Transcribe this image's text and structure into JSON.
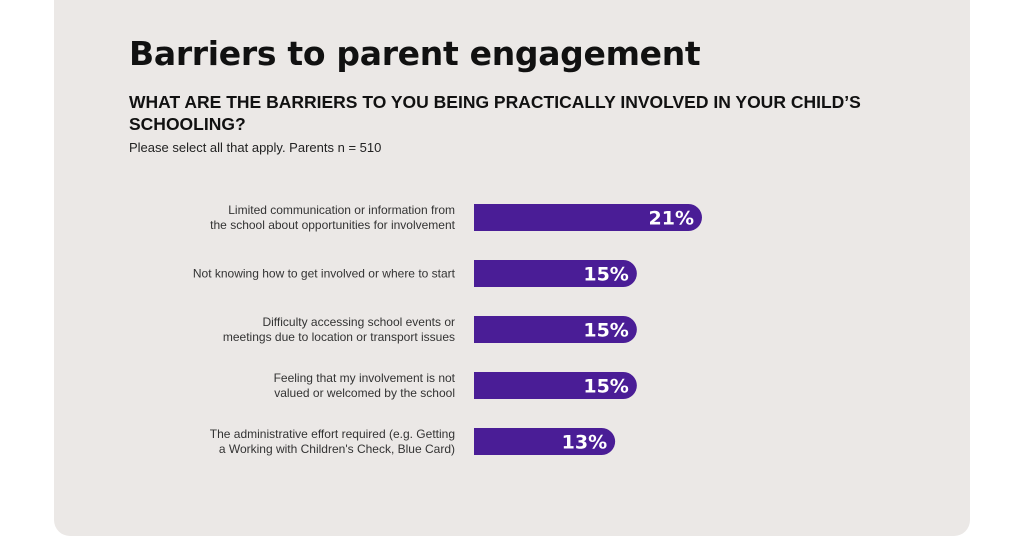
{
  "header": {
    "title": "Barriers to parent engagement",
    "question": "WHAT ARE THE BARRIERS TO YOU BEING PRACTICALLY INVOLVED IN YOUR CHILD’S SCHOOLING?",
    "note": "Please select all that apply. Parents n = 510"
  },
  "colors": {
    "bar": "#4a1d96",
    "background": "#ebe8e6"
  },
  "chart_data": {
    "type": "bar",
    "orientation": "horizontal",
    "categories": [
      [
        "Limited communication or information from",
        "the school about opportunities for involvement"
      ],
      [
        "Not knowing how to get involved or where to start"
      ],
      [
        "Difficulty accessing school events or",
        "meetings due to location or transport issues"
      ],
      [
        "Feeling that my involvement is not",
        "valued or welcomed by the school"
      ],
      [
        "The administrative effort required (e.g. Getting",
        "a Working with Children's Check, Blue Card)"
      ]
    ],
    "values": [
      21,
      15,
      15,
      15,
      13
    ],
    "value_labels": [
      "21%",
      "15%",
      "15%",
      "15%",
      "13%"
    ],
    "xlim": [
      0,
      21
    ],
    "grid": false,
    "legend": "none"
  }
}
